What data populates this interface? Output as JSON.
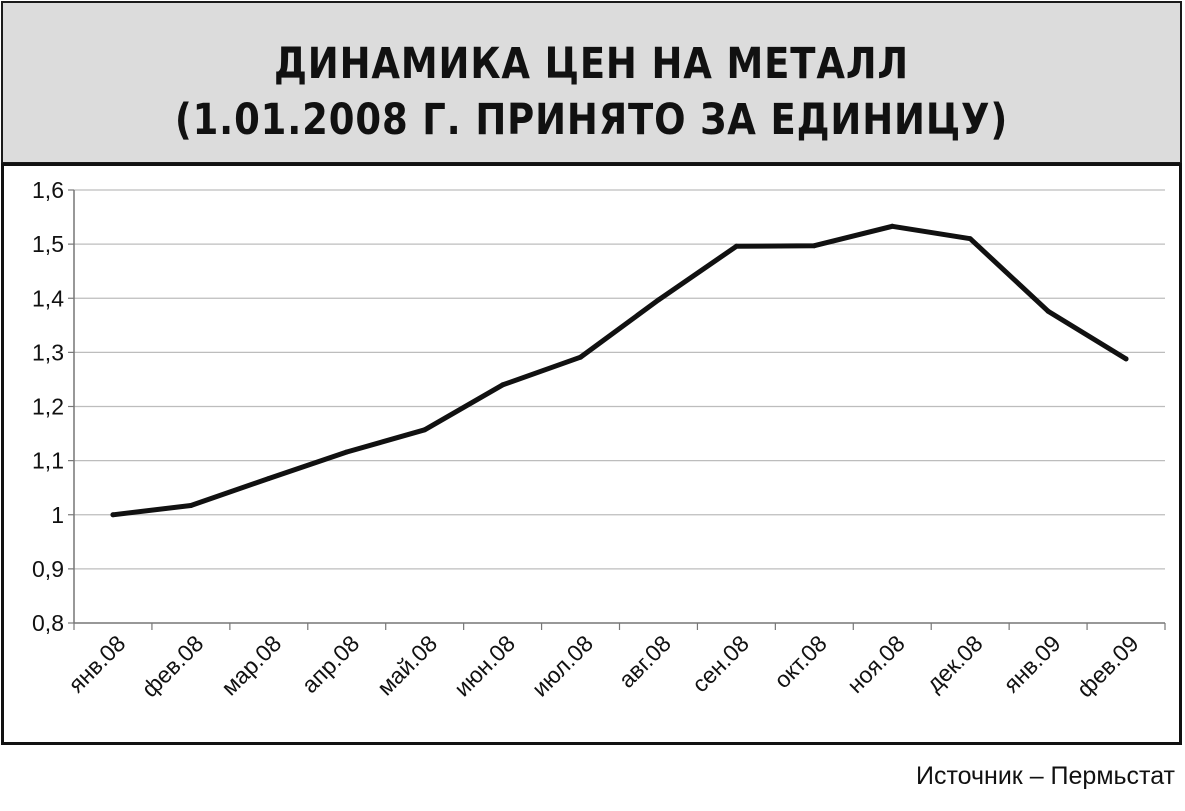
{
  "title_line1": "ДИНАМИКА ЦЕН НА МЕТАЛЛ",
  "title_line2": "(1.01.2008 Г. ПРИНЯТО ЗА ЕДИНИЦУ)",
  "source": "Источник – Пермьстат",
  "colors": {
    "line": "#111111",
    "grid": "#bdbdbd",
    "title_bg": "#dcdcdc"
  },
  "chart_data": {
    "type": "line",
    "title": "ДИНАМИКА ЦЕН НА МЕТАЛЛ (1.01.2008 Г. ПРИНЯТО ЗА ЕДИНИЦУ)",
    "xlabel": "",
    "ylabel": "",
    "ylim": [
      0.8,
      1.6
    ],
    "y_ticks": [
      "0,8",
      "0,9",
      "1",
      "1,1",
      "1,2",
      "1,3",
      "1,4",
      "1,5",
      "1,6"
    ],
    "grid": true,
    "legend": "none",
    "categories": [
      "янв.08",
      "фев.08",
      "мар.08",
      "апр.08",
      "май.08",
      "июн.08",
      "июл.08",
      "авг.08",
      "сен.08",
      "окт.08",
      "ноя.08",
      "дек.08",
      "янв.09",
      "фев.09"
    ],
    "series": [
      {
        "values": [
          1.0,
          1.017,
          1.067,
          1.116,
          1.157,
          1.24,
          1.291,
          1.397,
          1.496,
          1.497,
          1.533,
          1.51,
          1.376,
          1.288
        ]
      }
    ]
  }
}
